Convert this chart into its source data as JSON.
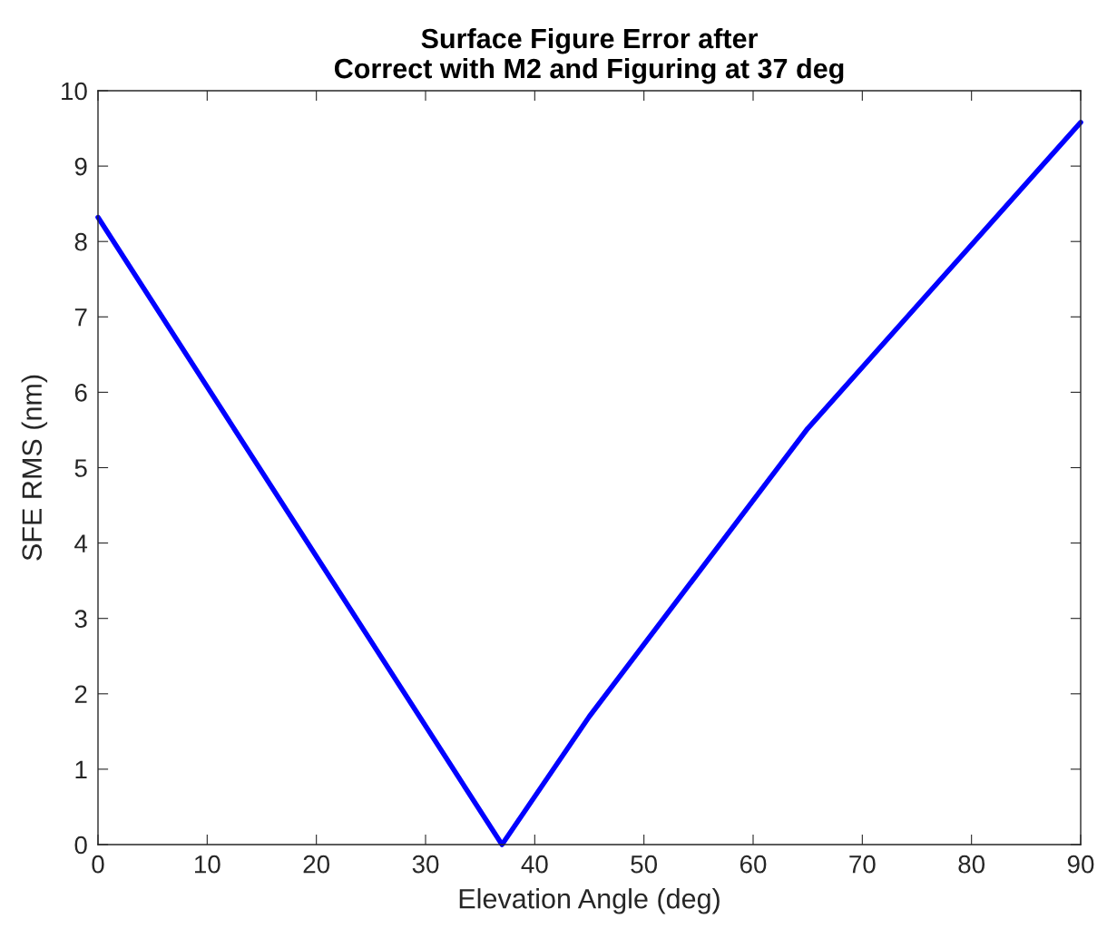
{
  "chart_data": {
    "type": "line",
    "title": "Surface Figure Error after\nCorrect with M2 and Figuring at 37 deg",
    "xlabel": "Elevation Angle (deg)",
    "ylabel": "SFE RMS (nm)",
    "x": [
      0,
      37,
      45,
      65,
      90
    ],
    "series": [
      {
        "color": "#0000ff",
        "values": [
          8.32,
          0,
          1.7,
          5.52,
          9.58
        ]
      }
    ],
    "xlim": [
      0,
      90
    ],
    "xticks": [
      0,
      10,
      20,
      30,
      40,
      50,
      60,
      70,
      80,
      90
    ],
    "ylim": [
      0,
      10
    ],
    "yticks": [
      0,
      1,
      2,
      3,
      4,
      5,
      6,
      7,
      8,
      9,
      10
    ],
    "grid": false,
    "legend": false,
    "marker": "none",
    "line_style": "solid"
  }
}
